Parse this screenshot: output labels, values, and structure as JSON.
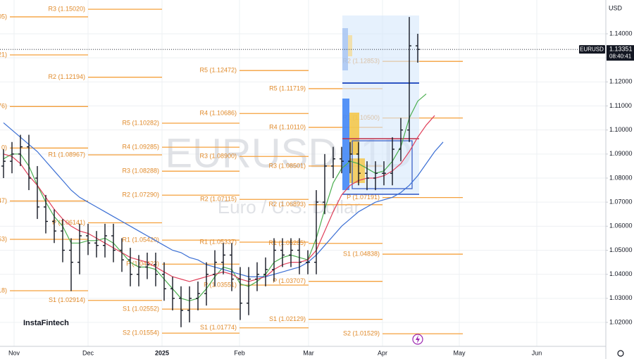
{
  "currency": "USD",
  "brand": "InstaFintech",
  "chart_data": {
    "type": "ohlc",
    "title": "EURUSD, 1D",
    "subtitle": "Euro / U.S. Dollar",
    "symbol": "EURUSD",
    "last_price": 1.13351,
    "countdown": "08:40:41",
    "ylim": [
      1.01005,
      1.15405
    ],
    "yticks": [
      {
        "value": 1.14,
        "label": "1.14000"
      },
      {
        "value": 1.13,
        "label": "1.13000"
      },
      {
        "value": 1.12,
        "label": "1.12000"
      },
      {
        "value": 1.11,
        "label": "1.11000"
      },
      {
        "value": 1.1,
        "label": "1.10000"
      },
      {
        "value": 1.09,
        "label": "1.09000"
      },
      {
        "value": 1.08,
        "label": "1.08000"
      },
      {
        "value": 1.07,
        "label": "1.07000"
      },
      {
        "value": 1.06,
        "label": "1.06000"
      },
      {
        "value": 1.05,
        "label": "1.05000"
      },
      {
        "value": 1.04,
        "label": "1.04000"
      },
      {
        "value": 1.03,
        "label": "1.03000"
      },
      {
        "value": 1.02,
        "label": "1.02000"
      }
    ],
    "x_labels": [
      "Nov",
      "Dec",
      "2025",
      "Feb",
      "Mar",
      "Apr",
      "May",
      "Jun"
    ],
    "grid": true,
    "bar_color": "#131722",
    "open": [
      1.085,
      1.087,
      1.09,
      1.093,
      1.08,
      1.068,
      1.062,
      1.058,
      1.05,
      1.045,
      1.056,
      1.053,
      1.052,
      1.056,
      1.05,
      1.046,
      1.04,
      1.043,
      1.044,
      1.04,
      1.034,
      1.03,
      1.025,
      1.03,
      1.032,
      1.04,
      1.045,
      1.048,
      1.038,
      1.028,
      1.038,
      1.04,
      1.042,
      1.05,
      1.048,
      1.05,
      1.045,
      1.045,
      1.07,
      1.085,
      1.088,
      1.087,
      1.09,
      1.082,
      1.08,
      1.082,
      1.082,
      1.092,
      1.1,
      1.135
    ],
    "high": [
      1.092,
      1.095,
      1.098,
      1.098,
      1.085,
      1.073,
      1.067,
      1.063,
      1.055,
      1.061,
      1.061,
      1.058,
      1.061,
      1.061,
      1.055,
      1.051,
      1.048,
      1.049,
      1.049,
      1.045,
      1.039,
      1.035,
      1.035,
      1.037,
      1.045,
      1.05,
      1.053,
      1.053,
      1.043,
      1.043,
      1.045,
      1.047,
      1.055,
      1.055,
      1.055,
      1.055,
      1.05,
      1.075,
      1.09,
      1.093,
      1.093,
      1.095,
      1.095,
      1.087,
      1.087,
      1.087,
      1.097,
      1.105,
      1.147,
      1.14
    ],
    "low": [
      1.08,
      1.082,
      1.085,
      1.075,
      1.063,
      1.057,
      1.053,
      1.045,
      1.033,
      1.04,
      1.048,
      1.047,
      1.047,
      1.045,
      1.041,
      1.035,
      1.035,
      1.038,
      1.035,
      1.029,
      1.025,
      1.018,
      1.02,
      1.025,
      1.027,
      1.035,
      1.04,
      1.033,
      1.021,
      1.023,
      1.033,
      1.035,
      1.037,
      1.043,
      1.043,
      1.04,
      1.04,
      1.04,
      1.065,
      1.08,
      1.082,
      1.082,
      1.077,
      1.075,
      1.075,
      1.077,
      1.077,
      1.087,
      1.095,
      1.128
    ],
    "close": [
      1.087,
      1.09,
      1.093,
      1.08,
      1.068,
      1.062,
      1.058,
      1.05,
      1.045,
      1.056,
      1.053,
      1.052,
      1.056,
      1.05,
      1.046,
      1.04,
      1.043,
      1.044,
      1.04,
      1.034,
      1.03,
      1.025,
      1.03,
      1.032,
      1.04,
      1.045,
      1.048,
      1.038,
      1.028,
      1.038,
      1.04,
      1.042,
      1.05,
      1.048,
      1.05,
      1.045,
      1.045,
      1.07,
      1.085,
      1.088,
      1.087,
      1.09,
      1.082,
      1.08,
      1.082,
      1.082,
      1.092,
      1.1,
      1.135,
      1.13351
    ],
    "moving_averages": [
      {
        "color": "#4caf50",
        "values": [
          1.088,
          1.09,
          1.09,
          1.085,
          1.077,
          1.07,
          1.064,
          1.06,
          1.053,
          1.053,
          1.054,
          1.054,
          1.055,
          1.053,
          1.049,
          1.045,
          1.043,
          1.043,
          1.042,
          1.038,
          1.034,
          1.03,
          1.029,
          1.03,
          1.034,
          1.039,
          1.043,
          1.042,
          1.036,
          1.035,
          1.037,
          1.04,
          1.045,
          1.047,
          1.048,
          1.047,
          1.046,
          1.055,
          1.067,
          1.078,
          1.084,
          1.087,
          1.086,
          1.084,
          1.082,
          1.083,
          1.087,
          1.093,
          1.105,
          1.112,
          1.115
        ]
      },
      {
        "color": "#e0405a",
        "values": [
          1.09,
          1.089,
          1.086,
          1.081,
          1.077,
          1.072,
          1.067,
          1.063,
          1.06,
          1.058,
          1.057,
          1.055,
          1.053,
          1.051,
          1.049,
          1.047,
          1.046,
          1.045,
          1.043,
          1.041,
          1.039,
          1.038,
          1.037,
          1.038,
          1.039,
          1.04,
          1.041,
          1.04,
          1.038,
          1.037,
          1.038,
          1.039,
          1.042,
          1.044,
          1.045,
          1.045,
          1.046,
          1.05,
          1.058,
          1.066,
          1.073,
          1.077,
          1.079,
          1.08,
          1.08,
          1.081,
          1.083,
          1.086,
          1.091,
          1.097,
          1.102,
          1.106
        ]
      },
      {
        "color": "#3b6fd4",
        "values": [
          1.103,
          1.1,
          1.097,
          1.094,
          1.091,
          1.087,
          1.083,
          1.079,
          1.075,
          1.072,
          1.07,
          1.068,
          1.066,
          1.064,
          1.062,
          1.06,
          1.058,
          1.056,
          1.054,
          1.052,
          1.05,
          1.049,
          1.047,
          1.046,
          1.044,
          1.043,
          1.042,
          1.041,
          1.04,
          1.039,
          1.039,
          1.039,
          1.04,
          1.041,
          1.042,
          1.043,
          1.045,
          1.048,
          1.052,
          1.056,
          1.06,
          1.063,
          1.066,
          1.068,
          1.07,
          1.071,
          1.072,
          1.074,
          1.077,
          1.081,
          1.086,
          1.091,
          1.095
        ]
      }
    ],
    "pivot_color": "#f5a03c",
    "pivot_periods": [
      {
        "levels": [
          {
            "label": "05)",
            "value": 1.14705
          },
          {
            "label": "21)",
            "value": 1.13121
          },
          {
            "label": "76)",
            "value": 1.10976
          },
          {
            "label": "0)",
            "value": 1.0925
          },
          {
            "label": "47)",
            "value": 1.07047
          },
          {
            "label": "53)",
            "value": 1.05453
          },
          {
            "label": "18)",
            "value": 1.03318
          }
        ]
      },
      {
        "levels": [
          {
            "label": "R3 (1.15020)",
            "value": 1.1502
          },
          {
            "label": "R2 (1.12194)",
            "value": 1.12194
          },
          {
            "label": "R1 (1.08967)",
            "value": 1.08967
          },
          {
            "label": "P (1.06141)",
            "value": 1.06141
          },
          {
            "label": "S1 (1.02914)",
            "value": 1.02914
          }
        ]
      },
      {
        "levels": [
          {
            "label": "R5 (1.10282)",
            "value": 1.10282
          },
          {
            "label": "R4 (1.09285)",
            "value": 1.09285
          },
          {
            "label": "R3 (1.08288)",
            "value": 1.08288
          },
          {
            "label": "R2 (1.07290)",
            "value": 1.0729
          },
          {
            "label": "R1 (1.05420)",
            "value": 1.0542
          },
          {
            "label": "P (1.04423)",
            "value": 1.04423
          },
          {
            "label": "S1 (1.02552)",
            "value": 1.02552
          },
          {
            "label": "S2 (1.01554)",
            "value": 1.01554
          }
        ]
      },
      {
        "levels": [
          {
            "label": "R5 (1.12472)",
            "value": 1.12472
          },
          {
            "label": "R4 (1.10686)",
            "value": 1.10686
          },
          {
            "label": "R3 (1.08900)",
            "value": 1.089
          },
          {
            "label": "R2 (1.07115)",
            "value": 1.07115
          },
          {
            "label": "R1 (1.05337)",
            "value": 1.05337
          },
          {
            "label": "P (1.03551)",
            "value": 1.03551
          },
          {
            "label": "S1 (1.01774)",
            "value": 1.01774
          }
        ]
      },
      {
        "levels": [
          {
            "label": "R5 (1.11719)",
            "value": 1.11719
          },
          {
            "label": "R4 (1.10110)",
            "value": 1.1011
          },
          {
            "label": "R3 (1.08501)",
            "value": 1.08501
          },
          {
            "label": "R2 (1.06893)",
            "value": 1.06893
          },
          {
            "label": "R1 (1.05285)",
            "value": 1.05285
          },
          {
            "label": "P (1.03707)",
            "value": 1.03707
          },
          {
            "label": "S1 (1.02129)",
            "value": 1.02129
          }
        ]
      },
      {
        "levels": [
          {
            "label": "R2 (1.12853)",
            "value": 1.12853
          },
          {
            "label": "R1 (1.10500)",
            "value": 1.105
          },
          {
            "label": "P (1.07191)",
            "value": 1.07191
          },
          {
            "label": "S1 (1.04838)",
            "value": 1.04838
          },
          {
            "label": "S2 (1.01529)",
            "value": 1.01529
          }
        ]
      }
    ]
  }
}
